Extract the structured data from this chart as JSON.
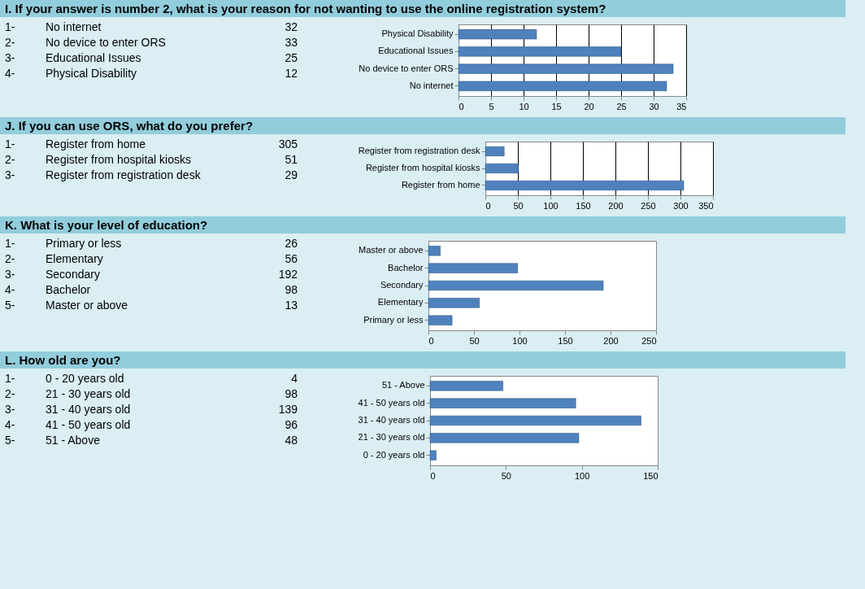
{
  "chart_data": [
    {
      "type": "other",
      "title": "I.   If your answer is number 2, what is your reason for not wanting to use the online registration system?",
      "annotations": [
        "1-",
        "No internet",
        "32",
        "2-",
        "No device to enter ORS",
        "33",
        "3-",
        "Educational Issues",
        "25",
        "4-",
        "Physical Disability",
        "12"
      ]
    },
    {
      "type": "bar",
      "orientation": "horizontal",
      "categories": [
        "Physical Disability",
        "Educational Issues",
        "No device to enter ORS",
        "No internet"
      ],
      "values": [
        12,
        25,
        33,
        32
      ],
      "color": "#4f81bd",
      "xlim": [
        0,
        35
      ],
      "xticks": [
        0,
        5,
        10,
        15,
        20,
        25,
        30,
        35
      ],
      "grid": "x"
    },
    {
      "type": "other",
      "title": "J.   If you can use ORS, what do you prefer?",
      "annotations": [
        "1-",
        "Register from home",
        "305",
        "2-",
        "Register from hospital kiosks",
        "51",
        "3-",
        "Register from registration desk",
        "29"
      ]
    },
    {
      "type": "bar",
      "orientation": "horizontal",
      "categories": [
        "Register from registration desk",
        "Register from hospital kiosks",
        "Register from home"
      ],
      "values": [
        29,
        51,
        305
      ],
      "color": "#4f81bd",
      "xlim": [
        0,
        350
      ],
      "xticks": [
        0,
        50,
        100,
        150,
        200,
        250,
        300,
        350
      ],
      "grid": "x"
    },
    {
      "type": "other",
      "title": "K.   What is your level of education?",
      "annotations": [
        "1-",
        "Primary or less",
        "26",
        "2-",
        "Elementary",
        "56",
        "3-",
        "Secondary",
        "192",
        "4-",
        "Bachelor",
        "98",
        "5-",
        "Master or above",
        "13"
      ]
    },
    {
      "type": "bar",
      "orientation": "horizontal",
      "categories": [
        "Master or above",
        "Bachelor",
        "Secondary",
        "Elementary",
        "Primary or less"
      ],
      "values": [
        13,
        98,
        192,
        56,
        26
      ],
      "color": "#4f81bd",
      "xlim": [
        0,
        250
      ],
      "xticks": [
        0,
        50,
        100,
        150,
        200,
        250
      ]
    },
    {
      "type": "other",
      "title": "L.   How old are you?",
      "annotations": [
        "1-",
        "0 - 20 years old",
        "4",
        "2-",
        "21 - 30 years old",
        "98",
        "3-",
        "31 - 40 years old",
        "139",
        "4-",
        "41 - 50 years old",
        "96",
        "5-",
        "51 - Above",
        "48"
      ]
    },
    {
      "type": "bar",
      "orientation": "horizontal",
      "categories": [
        "51 - Above",
        "41 - 50 years old",
        "31 - 40 years old",
        "21 - 30 years old",
        "0 - 20 years old"
      ],
      "values": [
        48,
        96,
        139,
        98,
        4
      ],
      "color": "#4f81bd",
      "xlim": [
        0,
        150
      ],
      "xticks": [
        0,
        50,
        100,
        150
      ]
    }
  ]
}
